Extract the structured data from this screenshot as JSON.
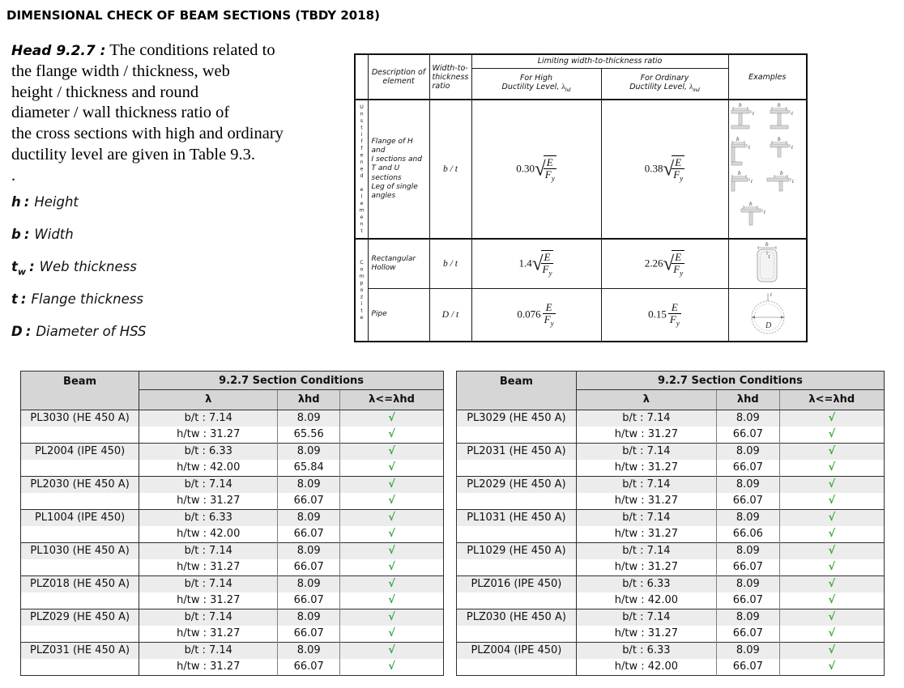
{
  "page": {
    "title": "DIMENSIONAL CHECK OF BEAM SECTIONS (TBDY 2018)"
  },
  "intro": {
    "head_label": "Head 9.2.7 :",
    "body": "The conditions related to\nthe flange width / thickness, web\nheight / thickness and round\ndiameter / wall thickness ratio of\nthe cross sections with high and ordinary\nductility level are given in Table 9.3.\n."
  },
  "labels": {
    "colon": ":"
  },
  "definitions": [
    {
      "symbol": "h",
      "sub": "",
      "desc": "Height"
    },
    {
      "symbol": "b",
      "sub": "",
      "desc": "Width"
    },
    {
      "symbol": "t",
      "sub": "w",
      "desc": "Web thickness"
    },
    {
      "symbol": "t",
      "sub": "",
      "desc": "Flange thickness"
    },
    {
      "symbol": "D",
      "sub": "",
      "desc": "Diameter of HSS"
    }
  ],
  "table93": {
    "headers": {
      "description": "Description of\nelement",
      "ratio": "Width-to-\nthickness\nratio",
      "limiting": "Limiting width-to-thickness ratio",
      "high_line1": "For High",
      "high_line2": "Ductility Level,",
      "high_sym": "λ",
      "high_sub": "hd",
      "ord_line1": "For Ordinary",
      "ord_line2": "Ductility Level,",
      "ord_sym": "λ",
      "ord_sub": "md",
      "examples": "Examples"
    },
    "side_labels": {
      "unstiffened": "Unstiffened element",
      "composite": "Compozite"
    },
    "rows": [
      {
        "desc": "Flange of H and\nI sections and\nT and U sections\nLeg of single\nangles",
        "ratio": "b / t",
        "high_coef": "0.30",
        "ord_coef": "0.38"
      },
      {
        "desc": "Rectangular\nHollow",
        "ratio": "b / t",
        "high_coef": "1.4",
        "ord_coef": "2.26"
      },
      {
        "desc": "Pipe",
        "ratio": "D / t",
        "high_coef": "0.076",
        "ord_coef": "0.15"
      }
    ],
    "math": {
      "E": "E",
      "F": "F",
      "y": "y",
      "radical": "√"
    },
    "diagram_labels": {
      "b": "b",
      "t": "t",
      "D": "D"
    }
  },
  "results": {
    "header": {
      "beam": "Beam",
      "group": "9.2.7 Section Conditions",
      "lambda": "λ",
      "lambda_hd": "λhd",
      "check": "λ<=λhd"
    },
    "check_mark": "√",
    "check_color": "#3aa63a",
    "tables": [
      {
        "rows": [
          {
            "beam": "PL3030 (HE 450 A)",
            "r1": "b/t : 7.14",
            "v1": "8.09",
            "r2": "h/tw : 31.27",
            "v2": "65.56"
          },
          {
            "beam": "PL2004 (IPE 450)",
            "r1": "b/t : 6.33",
            "v1": "8.09",
            "r2": "h/tw : 42.00",
            "v2": "65.84"
          },
          {
            "beam": "PL2030 (HE 450 A)",
            "r1": "b/t : 7.14",
            "v1": "8.09",
            "r2": "h/tw : 31.27",
            "v2": "66.07"
          },
          {
            "beam": "PL1004 (IPE 450)",
            "r1": "b/t : 6.33",
            "v1": "8.09",
            "r2": "h/tw : 42.00",
            "v2": "66.07"
          },
          {
            "beam": "PL1030 (HE 450 A)",
            "r1": "b/t : 7.14",
            "v1": "8.09",
            "r2": "h/tw : 31.27",
            "v2": "66.07"
          },
          {
            "beam": "PLZ018 (HE 450 A)",
            "r1": "b/t : 7.14",
            "v1": "8.09",
            "r2": "h/tw : 31.27",
            "v2": "66.07"
          },
          {
            "beam": "PLZ029 (HE 450 A)",
            "r1": "b/t : 7.14",
            "v1": "8.09",
            "r2": "h/tw : 31.27",
            "v2": "66.07"
          },
          {
            "beam": "PLZ031 (HE 450 A)",
            "r1": "b/t : 7.14",
            "v1": "8.09",
            "r2": "h/tw : 31.27",
            "v2": "66.07"
          }
        ]
      },
      {
        "rows": [
          {
            "beam": "PL3029 (HE 450 A)",
            "r1": "b/t : 7.14",
            "v1": "8.09",
            "r2": "h/tw : 31.27",
            "v2": "66.07"
          },
          {
            "beam": "PL2031 (HE 450 A)",
            "r1": "b/t : 7.14",
            "v1": "8.09",
            "r2": "h/tw : 31.27",
            "v2": "66.07"
          },
          {
            "beam": "PL2029 (HE 450 A)",
            "r1": "b/t : 7.14",
            "v1": "8.09",
            "r2": "h/tw : 31.27",
            "v2": "66.07"
          },
          {
            "beam": "PL1031 (HE 450 A)",
            "r1": "b/t : 7.14",
            "v1": "8.09",
            "r2": "h/tw : 31.27",
            "v2": "66.06"
          },
          {
            "beam": "PL1029 (HE 450 A)",
            "r1": "b/t : 7.14",
            "v1": "8.09",
            "r2": "h/tw : 31.27",
            "v2": "66.07"
          },
          {
            "beam": "PLZ016 (IPE 450)",
            "r1": "b/t : 6.33",
            "v1": "8.09",
            "r2": "h/tw : 42.00",
            "v2": "66.07"
          },
          {
            "beam": "PLZ030 (HE 450 A)",
            "r1": "b/t : 7.14",
            "v1": "8.09",
            "r2": "h/tw : 31.27",
            "v2": "66.07"
          },
          {
            "beam": "PLZ004 (IPE 450)",
            "r1": "b/t : 6.33",
            "v1": "8.09",
            "r2": "h/tw : 42.00",
            "v2": "66.07"
          }
        ]
      }
    ]
  }
}
